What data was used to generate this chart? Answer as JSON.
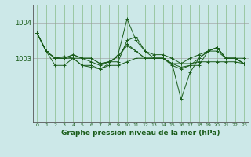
{
  "background_color": "#cce8e8",
  "plot_bg_color": "#cce8e8",
  "grid_color": "#88bb88",
  "line_color": "#1a5c1a",
  "x_labels": [
    "0",
    "1",
    "2",
    "3",
    "4",
    "5",
    "6",
    "7",
    "8",
    "9",
    "10",
    "11",
    "12",
    "13",
    "14",
    "15",
    "16",
    "17",
    "18",
    "19",
    "20",
    "21",
    "22",
    "23"
  ],
  "xlabel": "Graphe pression niveau de la mer (hPa)",
  "yticks": [
    1003,
    1004
  ],
  "ylim": [
    1001.2,
    1004.5
  ],
  "xlim": [
    -0.5,
    23.5
  ],
  "series": [
    [
      1003.7,
      1003.2,
      1002.8,
      1002.8,
      1003.0,
      1002.8,
      1002.8,
      1002.7,
      1002.8,
      1002.8,
      1002.9,
      1003.0,
      1003.0,
      1003.0,
      1003.0,
      1002.85,
      1002.85,
      1002.85,
      1002.9,
      1002.9,
      1002.9,
      1002.9,
      1002.9,
      1002.85
    ],
    [
      1003.7,
      1003.2,
      1003.0,
      1003.0,
      1003.0,
      1003.0,
      1002.9,
      1002.8,
      1002.9,
      1002.9,
      1003.5,
      1003.6,
      1003.2,
      1003.1,
      1003.1,
      1003.0,
      1002.85,
      1003.0,
      1003.1,
      1003.2,
      1003.2,
      1003.0,
      1003.0,
      1003.0
    ],
    [
      1003.7,
      1003.2,
      1003.0,
      1003.05,
      1003.0,
      1002.8,
      1002.75,
      1002.7,
      1002.85,
      1003.1,
      1004.1,
      1003.5,
      1003.2,
      1003.0,
      1003.0,
      1002.8,
      1002.7,
      1002.8,
      1003.0,
      1003.2,
      1003.3,
      1003.0,
      1003.0,
      1002.85
    ],
    [
      1003.7,
      1003.2,
      1003.0,
      1003.0,
      1003.1,
      1003.0,
      1003.0,
      1002.85,
      1002.9,
      1003.05,
      1003.35,
      1003.2,
      1003.0,
      1003.0,
      1003.0,
      1002.85,
      1002.75,
      1002.8,
      1002.8,
      1003.2,
      1003.3,
      1003.0,
      1003.0,
      1002.85
    ],
    [
      1003.7,
      1003.2,
      1003.0,
      1003.0,
      1003.1,
      1003.0,
      1003.0,
      1002.85,
      1002.9,
      1003.05,
      1003.4,
      1003.2,
      1003.0,
      1003.0,
      1003.0,
      1002.85,
      1001.85,
      1002.6,
      1003.0,
      1003.2,
      1003.3,
      1003.0,
      1003.0,
      1002.85
    ]
  ],
  "figsize": [
    3.2,
    2.0
  ],
  "dpi": 100
}
